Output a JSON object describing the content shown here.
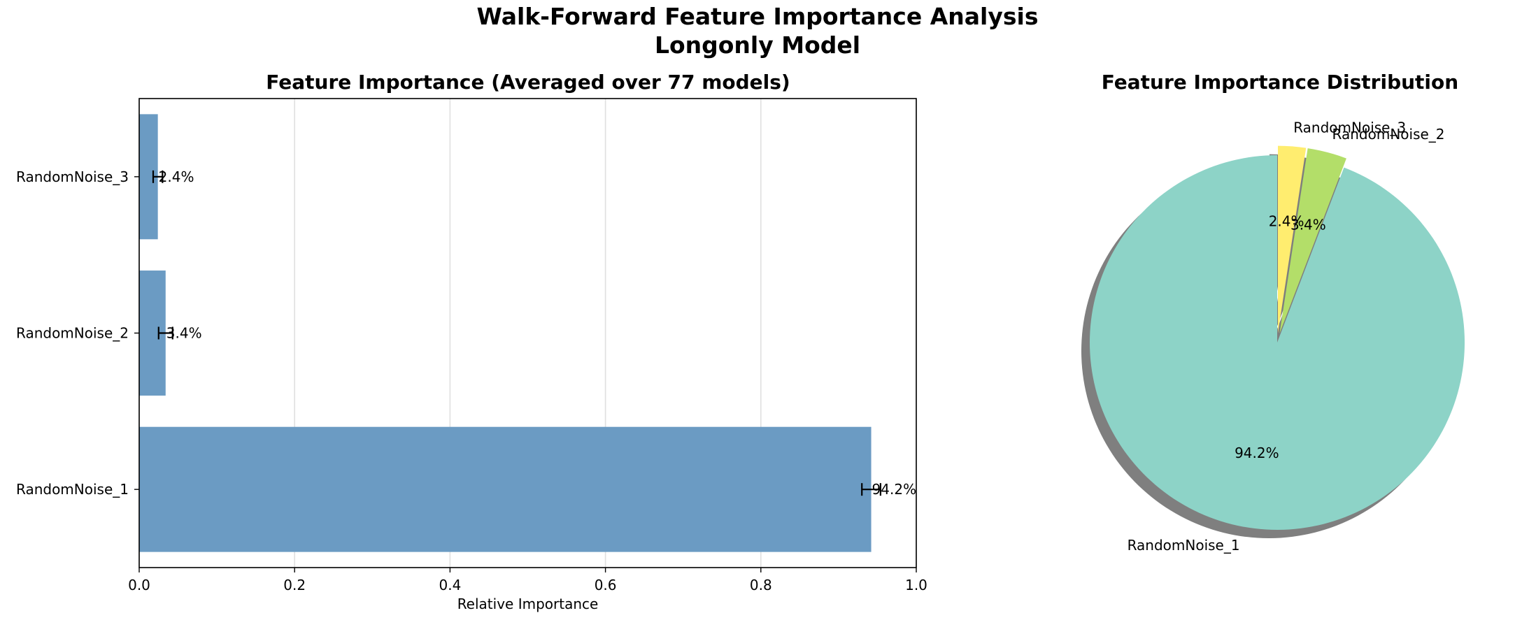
{
  "figure": {
    "title_line1": "Walk-Forward Feature Importance Analysis",
    "title_line2": "Longonly Model"
  },
  "chart_data": [
    {
      "type": "bar",
      "orientation": "horizontal",
      "title": "Feature Importance (Averaged over 77 models)",
      "xlabel": "Relative Importance",
      "ylabel": "",
      "xlim": [
        0.0,
        1.0
      ],
      "xticks": [
        "0.0",
        "0.2",
        "0.4",
        "0.6",
        "0.8",
        "1.0"
      ],
      "grid": "x",
      "categories": [
        "RandomNoise_1",
        "RandomNoise_2",
        "RandomNoise_3"
      ],
      "values": [
        0.942,
        0.034,
        0.024
      ],
      "errors": [
        0.012,
        0.009,
        0.006
      ],
      "data_labels": [
        "94.2%",
        "3.4%",
        "2.4%"
      ],
      "color": "#6b9bc3"
    },
    {
      "type": "pie",
      "title": "Feature Importance Distribution",
      "labels": [
        "RandomNoise_1",
        "RandomNoise_2",
        "RandomNoise_3"
      ],
      "values": [
        94.2,
        3.4,
        2.4
      ],
      "pct_labels": [
        "94.2%",
        "3.4%",
        "2.4%"
      ],
      "explode": [
        0,
        0.05,
        0.05
      ],
      "start_angle": 90,
      "shadow": true,
      "colors": [
        "#8dd3c7",
        "#b3de69",
        "#ffed6f"
      ]
    }
  ]
}
